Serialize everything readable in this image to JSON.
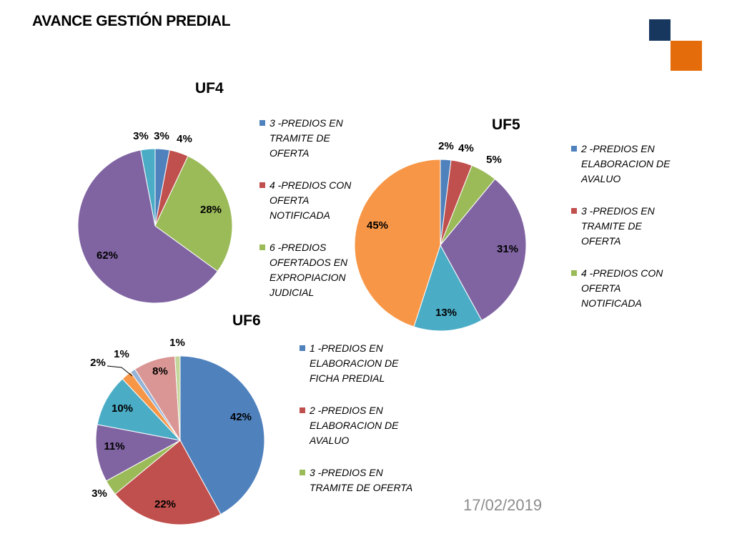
{
  "header": {
    "title": "AVANCE GESTIÓN PREDIAL"
  },
  "footer": {
    "date": "17/02/2019"
  },
  "brand": {
    "dark": "#17375e",
    "orange": "#e46c0a"
  },
  "chart_data": [
    {
      "id": "uf4",
      "type": "pie",
      "title": "UF4",
      "slices": [
        {
          "label": "3 -PREDIOS EN TRAMITE DE OFERTA",
          "value": 3,
          "pct": "3%",
          "color": "#4f81bd"
        },
        {
          "label": "4 -PREDIOS CON OFERTA NOTIFICADA",
          "value": 4,
          "pct": "4%",
          "color": "#c0504d"
        },
        {
          "label": "6 -PREDIOS OFERTADOS EN EXPROPIACION JUDICIAL",
          "value": 28,
          "pct": "28%",
          "color": "#9bbb59"
        },
        {
          "label": "",
          "value": 62,
          "pct": "62%",
          "color": "#8064a2"
        },
        {
          "label": "",
          "value": 3,
          "pct": "3%",
          "color": "#4bacc6"
        }
      ],
      "legend": [
        {
          "text": "3 -PREDIOS EN TRAMITE DE OFERTA",
          "lines": [
            "3 -PREDIOS EN",
            "TRAMITE DE",
            "OFERTA"
          ],
          "color": "#4f81bd"
        },
        {
          "text": "4 -PREDIOS CON OFERTA NOTIFICADA",
          "lines": [
            "4 -PREDIOS CON",
            "OFERTA",
            "NOTIFICADA"
          ],
          "color": "#c0504d"
        },
        {
          "text": "6 -PREDIOS OFERTADOS EN EXPROPIACION JUDICIAL",
          "lines": [
            "6 -PREDIOS",
            "OFERTADOS EN",
            "EXPROPIACION",
            "JUDICIAL"
          ],
          "color": "#9bbb59"
        }
      ]
    },
    {
      "id": "uf5",
      "type": "pie",
      "title": "UF5",
      "slices": [
        {
          "label": "2 -PREDIOS EN ELABORACION DE AVALUO",
          "value": 2,
          "pct": "2%",
          "color": "#4f81bd"
        },
        {
          "label": "3 -PREDIOS EN TRAMITE DE OFERTA",
          "value": 4,
          "pct": "4%",
          "color": "#c0504d"
        },
        {
          "label": "4 -PREDIOS CON OFERTA NOTIFICADA",
          "value": 5,
          "pct": "5%",
          "color": "#9bbb59"
        },
        {
          "label": "",
          "value": 31,
          "pct": "31%",
          "color": "#8064a2"
        },
        {
          "label": "",
          "value": 13,
          "pct": "13%",
          "color": "#4bacc6"
        },
        {
          "label": "",
          "value": 45,
          "pct": "45%",
          "color": "#f79646"
        }
      ],
      "legend": [
        {
          "text": "2 -PREDIOS EN ELABORACION DE AVALUO",
          "lines": [
            "2 -PREDIOS EN",
            "ELABORACION DE",
            "AVALUO"
          ],
          "color": "#4f81bd"
        },
        {
          "text": "3 -PREDIOS EN TRAMITE DE OFERTA",
          "lines": [
            "3 -PREDIOS EN",
            "TRAMITE DE",
            "OFERTA"
          ],
          "color": "#c0504d"
        },
        {
          "text": "4 -PREDIOS CON OFERTA NOTIFICADA",
          "lines": [
            "4 -PREDIOS CON",
            "OFERTA",
            "NOTIFICADA"
          ],
          "color": "#9bbb59"
        }
      ]
    },
    {
      "id": "uf6",
      "type": "pie",
      "title": "UF6",
      "slices": [
        {
          "label": "1 -PREDIOS EN ELABORACION DE FICHA PREDIAL",
          "value": 42,
          "pct": "42%",
          "color": "#4f81bd"
        },
        {
          "label": "2 -PREDIOS EN ELABORACION DE AVALUO",
          "value": 22,
          "pct": "22%",
          "color": "#c0504d"
        },
        {
          "label": "3 -PREDIOS EN TRAMITE DE OFERTA",
          "value": 3,
          "pct": "3%",
          "color": "#9bbb59"
        },
        {
          "label": "",
          "value": 11,
          "pct": "11%",
          "color": "#8064a2"
        },
        {
          "label": "",
          "value": 10,
          "pct": "10%",
          "color": "#4bacc6"
        },
        {
          "label": "",
          "value": 2,
          "pct": "2%",
          "color": "#f79646"
        },
        {
          "label": "",
          "value": 1,
          "pct": "1%",
          "color": "#95b3d7"
        },
        {
          "label": "",
          "value": 8,
          "pct": "8%",
          "color": "#d99694"
        },
        {
          "label": "",
          "value": 1,
          "pct": "1%",
          "color": "#c3d69b"
        }
      ],
      "legend": [
        {
          "text": "1 -PREDIOS EN ELABORACION DE FICHA PREDIAL",
          "lines": [
            "1 -PREDIOS EN",
            "ELABORACION DE",
            "FICHA PREDIAL"
          ],
          "color": "#4f81bd"
        },
        {
          "text": "2 -PREDIOS EN ELABORACION DE AVALUO",
          "lines": [
            "2 -PREDIOS EN",
            "ELABORACION DE",
            "AVALUO"
          ],
          "color": "#c0504d"
        },
        {
          "text": "3 -PREDIOS EN TRAMITE DE OFERTA",
          "lines": [
            "3 -PREDIOS EN",
            "TRAMITE DE OFERTA"
          ],
          "color": "#9bbb59"
        }
      ]
    }
  ]
}
